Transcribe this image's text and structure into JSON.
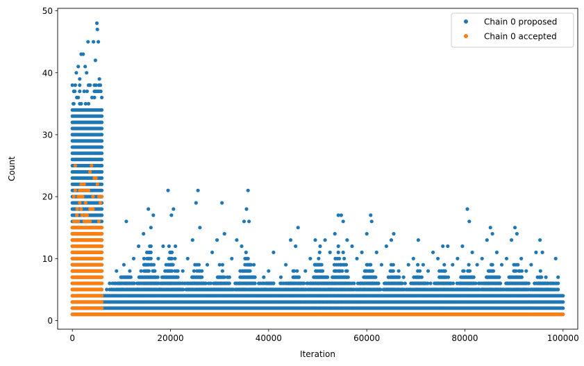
{
  "chart_data": {
    "type": "scatter",
    "title": "",
    "xlabel": "Iteration",
    "ylabel": "Count",
    "xlim": [
      -3000,
      103000
    ],
    "ylim": [
      -1.4,
      50.4
    ],
    "xticks": [
      0,
      20000,
      40000,
      60000,
      80000,
      100000
    ],
    "yticks": [
      0,
      10,
      20,
      30,
      40,
      50
    ],
    "grid": false,
    "legend_position": "top-right",
    "series": [
      {
        "name": "Chain 0 proposed",
        "color": "#1f77b4",
        "marker": "circle",
        "bands": [
          {
            "x": [
              0,
              6000
            ],
            "y": [
              1,
              34
            ]
          },
          {
            "x": [
              6000,
              100000
            ],
            "y": [
              1,
              4
            ]
          }
        ],
        "points": [
          {
            "x": 200,
            "y": 35
          },
          {
            "x": 500,
            "y": 37
          },
          {
            "x": 800,
            "y": 40
          },
          {
            "x": 1200,
            "y": 41
          },
          {
            "x": 1500,
            "y": 39
          },
          {
            "x": 1800,
            "y": 43
          },
          {
            "x": 2200,
            "y": 43
          },
          {
            "x": 2600,
            "y": 41
          },
          {
            "x": 2900,
            "y": 40
          },
          {
            "x": 3200,
            "y": 45
          },
          {
            "x": 3600,
            "y": 38
          },
          {
            "x": 4000,
            "y": 36
          },
          {
            "x": 4300,
            "y": 45
          },
          {
            "x": 4700,
            "y": 42
          },
          {
            "x": 5000,
            "y": 48
          },
          {
            "x": 5100,
            "y": 47
          },
          {
            "x": 5300,
            "y": 45
          },
          {
            "x": 5500,
            "y": 39
          },
          {
            "x": 5800,
            "y": 37
          },
          {
            "x": 8000,
            "y": 5
          },
          {
            "x": 9000,
            "y": 8
          },
          {
            "x": 10000,
            "y": 7
          },
          {
            "x": 10500,
            "y": 9
          },
          {
            "x": 11000,
            "y": 16
          },
          {
            "x": 12500,
            "y": 10
          },
          {
            "x": 13500,
            "y": 12
          },
          {
            "x": 14500,
            "y": 14
          },
          {
            "x": 15500,
            "y": 18
          },
          {
            "x": 16000,
            "y": 15
          },
          {
            "x": 16500,
            "y": 17
          },
          {
            "x": 17500,
            "y": 10
          },
          {
            "x": 18500,
            "y": 12
          },
          {
            "x": 19500,
            "y": 21
          },
          {
            "x": 20200,
            "y": 17
          },
          {
            "x": 20600,
            "y": 18
          },
          {
            "x": 21000,
            "y": 12
          },
          {
            "x": 22500,
            "y": 8
          },
          {
            "x": 23500,
            "y": 10
          },
          {
            "x": 24500,
            "y": 13
          },
          {
            "x": 25200,
            "y": 19
          },
          {
            "x": 25600,
            "y": 21
          },
          {
            "x": 26000,
            "y": 15
          },
          {
            "x": 27500,
            "y": 9
          },
          {
            "x": 28500,
            "y": 11
          },
          {
            "x": 29500,
            "y": 13
          },
          {
            "x": 30500,
            "y": 19
          },
          {
            "x": 31000,
            "y": 14
          },
          {
            "x": 32500,
            "y": 10
          },
          {
            "x": 33500,
            "y": 13
          },
          {
            "x": 34500,
            "y": 12
          },
          {
            "x": 35000,
            "y": 16
          },
          {
            "x": 35500,
            "y": 18
          },
          {
            "x": 35800,
            "y": 21
          },
          {
            "x": 36000,
            "y": 16
          },
          {
            "x": 37000,
            "y": 9
          },
          {
            "x": 38000,
            "y": 6
          },
          {
            "x": 39000,
            "y": 7
          },
          {
            "x": 40000,
            "y": 8
          },
          {
            "x": 41000,
            "y": 11
          },
          {
            "x": 42500,
            "y": 7
          },
          {
            "x": 43500,
            "y": 9
          },
          {
            "x": 44500,
            "y": 13
          },
          {
            "x": 45500,
            "y": 12
          },
          {
            "x": 46000,
            "y": 15
          },
          {
            "x": 47500,
            "y": 8
          },
          {
            "x": 48500,
            "y": 10
          },
          {
            "x": 49500,
            "y": 13
          },
          {
            "x": 50500,
            "y": 12
          },
          {
            "x": 51500,
            "y": 13
          },
          {
            "x": 52500,
            "y": 11
          },
          {
            "x": 53500,
            "y": 14
          },
          {
            "x": 54200,
            "y": 17
          },
          {
            "x": 54800,
            "y": 17
          },
          {
            "x": 55200,
            "y": 16
          },
          {
            "x": 56000,
            "y": 13
          },
          {
            "x": 57000,
            "y": 12
          },
          {
            "x": 58000,
            "y": 10
          },
          {
            "x": 59000,
            "y": 11
          },
          {
            "x": 60000,
            "y": 14
          },
          {
            "x": 60800,
            "y": 17
          },
          {
            "x": 61000,
            "y": 16
          },
          {
            "x": 62000,
            "y": 11
          },
          {
            "x": 63000,
            "y": 9
          },
          {
            "x": 64000,
            "y": 12
          },
          {
            "x": 65000,
            "y": 13
          },
          {
            "x": 65500,
            "y": 14
          },
          {
            "x": 66500,
            "y": 8
          },
          {
            "x": 67500,
            "y": 7
          },
          {
            "x": 68500,
            "y": 9
          },
          {
            "x": 69500,
            "y": 10
          },
          {
            "x": 70500,
            "y": 13
          },
          {
            "x": 71500,
            "y": 9
          },
          {
            "x": 72500,
            "y": 8
          },
          {
            "x": 73500,
            "y": 11
          },
          {
            "x": 74500,
            "y": 10
          },
          {
            "x": 75500,
            "y": 12
          },
          {
            "x": 76500,
            "y": 12
          },
          {
            "x": 77500,
            "y": 9
          },
          {
            "x": 78500,
            "y": 10
          },
          {
            "x": 79500,
            "y": 12
          },
          {
            "x": 80500,
            "y": 18
          },
          {
            "x": 80900,
            "y": 16
          },
          {
            "x": 81500,
            "y": 11
          },
          {
            "x": 82500,
            "y": 9
          },
          {
            "x": 83500,
            "y": 10
          },
          {
            "x": 84500,
            "y": 13
          },
          {
            "x": 85200,
            "y": 15
          },
          {
            "x": 85600,
            "y": 14
          },
          {
            "x": 86500,
            "y": 11
          },
          {
            "x": 87500,
            "y": 9
          },
          {
            "x": 88500,
            "y": 10
          },
          {
            "x": 89500,
            "y": 13
          },
          {
            "x": 90200,
            "y": 15
          },
          {
            "x": 90600,
            "y": 14
          },
          {
            "x": 91500,
            "y": 10
          },
          {
            "x": 92500,
            "y": 8
          },
          {
            "x": 93500,
            "y": 9
          },
          {
            "x": 94500,
            "y": 11
          },
          {
            "x": 95300,
            "y": 13
          },
          {
            "x": 95800,
            "y": 11
          },
          {
            "x": 96500,
            "y": 7
          },
          {
            "x": 97500,
            "y": 6
          },
          {
            "x": 98500,
            "y": 10
          },
          {
            "x": 99000,
            "y": 7
          }
        ],
        "burst_centers": [
          11000,
          15500,
          20000,
          25500,
          30500,
          35500,
          40500,
          45500,
          50500,
          54500,
          60500,
          65500,
          70500,
          75500,
          80500,
          85500,
          90500,
          95500
        ],
        "burst_peaks": [
          9,
          14,
          14,
          10,
          10,
          12,
          7,
          9,
          12,
          14,
          11,
          10,
          9,
          10,
          10,
          11,
          11,
          8
        ]
      },
      {
        "name": "Chain 0 accepted",
        "color": "#ff7f0e",
        "marker": "circle",
        "bands": [
          {
            "x": [
              0,
              6000
            ],
            "y": [
              1,
              15
            ]
          },
          {
            "x": [
              6000,
              100000
            ],
            "y": [
              1,
              1
            ]
          }
        ],
        "points": [
          {
            "x": 1500,
            "y": 21
          },
          {
            "x": 1800,
            "y": 22
          },
          {
            "x": 2100,
            "y": 20
          },
          {
            "x": 2400,
            "y": 22
          },
          {
            "x": 2700,
            "y": 19
          },
          {
            "x": 3000,
            "y": 17
          },
          {
            "x": 3300,
            "y": 21
          },
          {
            "x": 3600,
            "y": 24
          },
          {
            "x": 3900,
            "y": 25
          },
          {
            "x": 4200,
            "y": 20
          },
          {
            "x": 4500,
            "y": 23
          },
          {
            "x": 4800,
            "y": 23
          },
          {
            "x": 5100,
            "y": 22
          },
          {
            "x": 600,
            "y": 25
          },
          {
            "x": 1000,
            "y": 18
          },
          {
            "x": 1200,
            "y": 16
          },
          {
            "x": 2000,
            "y": 17
          },
          {
            "x": 3100,
            "y": 16
          },
          {
            "x": 4000,
            "y": 18
          },
          {
            "x": 5400,
            "y": 16
          }
        ]
      }
    ]
  }
}
